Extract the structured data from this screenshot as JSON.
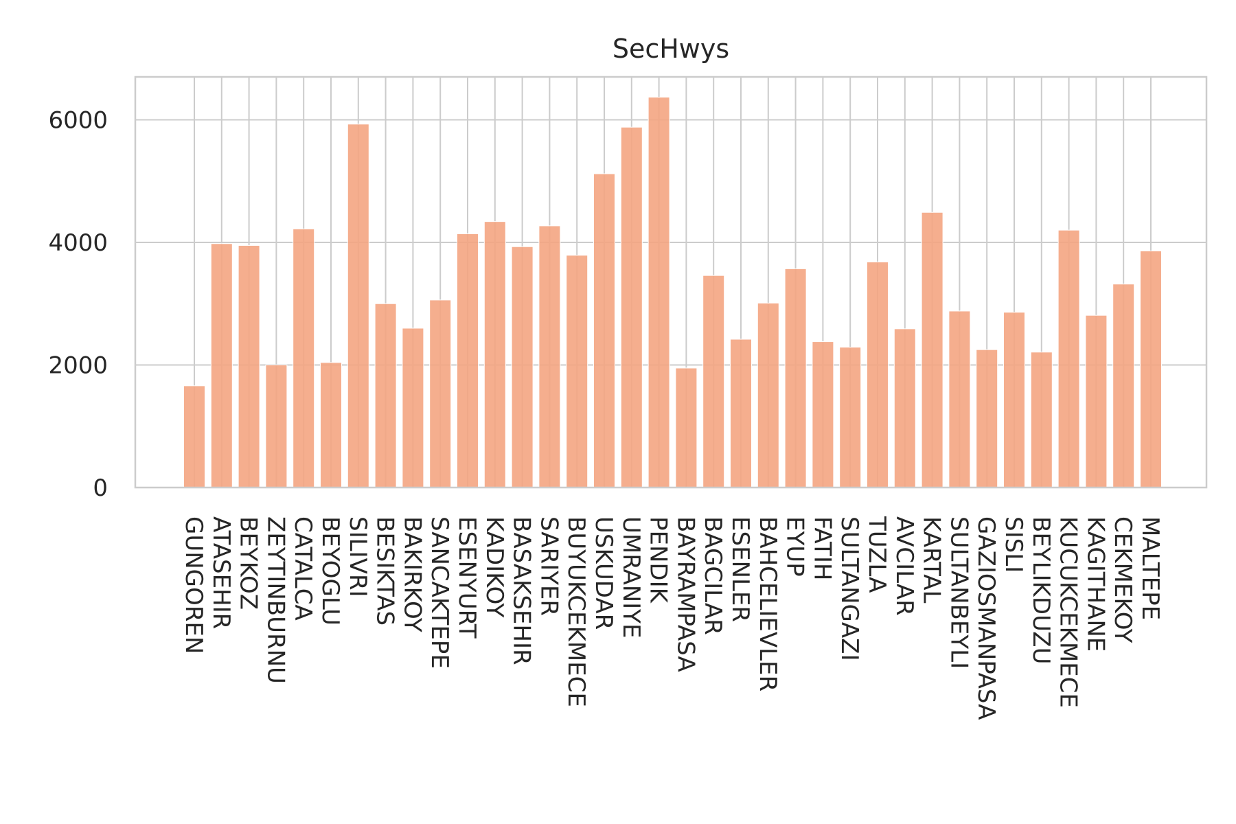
{
  "chart_data": {
    "type": "bar",
    "title": "SecHwys",
    "xlabel": "",
    "ylabel": "",
    "ylim": [
      0,
      6700
    ],
    "yticks": [
      0,
      2000,
      4000,
      6000
    ],
    "grid": true,
    "bar_color": "#f4a582",
    "categories": [
      "GUNGOREN",
      "ATASEHIR",
      "BEYKOZ",
      "ZEYTINBURNU",
      "CATALCA",
      "BEYOGLU",
      "SILIVRI",
      "BESIKTAS",
      "BAKIRKOY",
      "SANCAKTEPE",
      "ESENYURT",
      "KADIKOY",
      "BASAKSEHIR",
      "SARIYER",
      "BUYUKCEKMECE",
      "USKUDAR",
      "UMRANIYE",
      "PENDIK",
      "BAYRAMPASA",
      "BAGCILAR",
      "ESENLER",
      "BAHCELIEVLER",
      "EYUP",
      "FATIH",
      "SULTANGAZI",
      "TUZLA",
      "AVCILAR",
      "KARTAL",
      "SULTANBEYLI",
      "GAZIOSMANPASA",
      "SISLI",
      "BEYLIKDUZU",
      "KUCUKCEKMECE",
      "KAGITHANE",
      "CEKMEKOY",
      "MALTEPE"
    ],
    "values": [
      1660,
      3980,
      3950,
      2000,
      4220,
      2040,
      5930,
      3000,
      2600,
      3060,
      4140,
      4340,
      3930,
      4270,
      3790,
      5120,
      5880,
      6370,
      1950,
      3460,
      2420,
      3010,
      3570,
      2380,
      2290,
      3680,
      2590,
      4490,
      2880,
      2250,
      2860,
      2210,
      4200,
      2810,
      3320,
      3860
    ]
  }
}
